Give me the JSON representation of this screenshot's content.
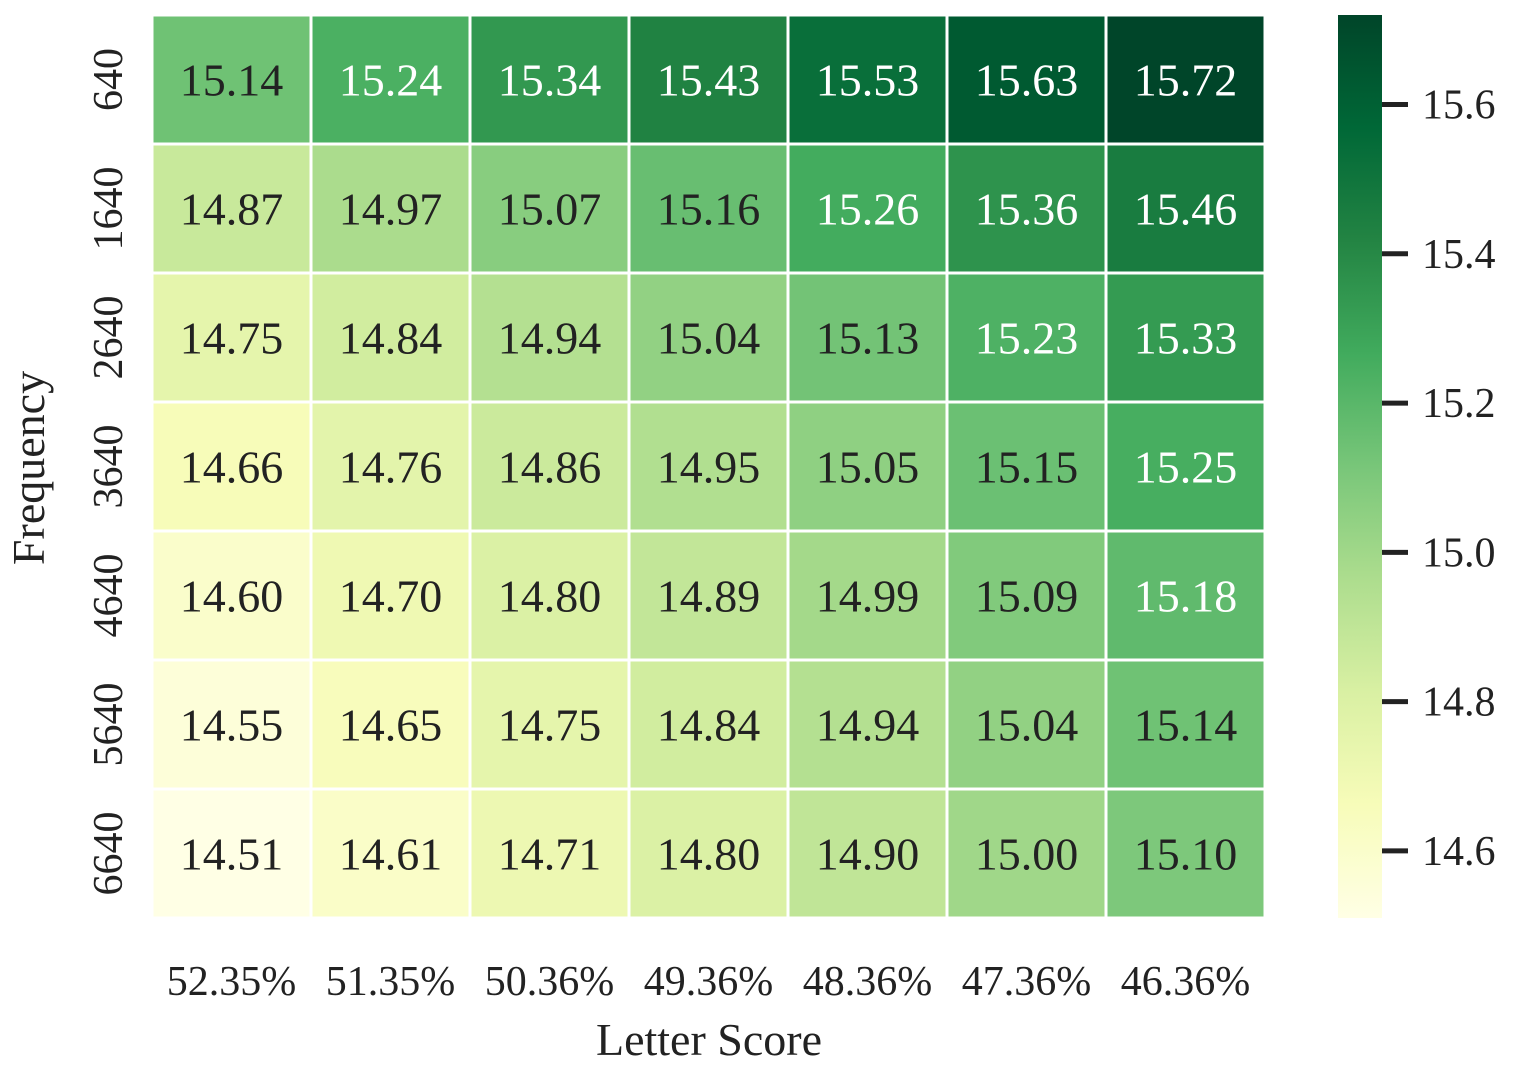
{
  "chart_data": {
    "type": "heatmap",
    "title": "",
    "xlabel": "Letter Score",
    "ylabel": "Frequency",
    "x_categories": [
      "52.35%",
      "51.35%",
      "50.36%",
      "49.36%",
      "48.36%",
      "47.36%",
      "46.36%"
    ],
    "y_categories": [
      "640",
      "1640",
      "2640",
      "3640",
      "4640",
      "5640",
      "6640"
    ],
    "values": [
      [
        "15.14",
        "15.24",
        "15.34",
        "15.43",
        "15.53",
        "15.63",
        "15.72"
      ],
      [
        "14.87",
        "14.97",
        "15.07",
        "15.16",
        "15.26",
        "15.36",
        "15.46"
      ],
      [
        "14.75",
        "14.84",
        "14.94",
        "15.04",
        "15.13",
        "15.23",
        "15.33"
      ],
      [
        "14.66",
        "14.76",
        "14.86",
        "14.95",
        "15.05",
        "15.15",
        "15.25"
      ],
      [
        "14.60",
        "14.70",
        "14.80",
        "14.89",
        "14.99",
        "15.09",
        "15.18"
      ],
      [
        "14.55",
        "14.65",
        "14.75",
        "14.84",
        "14.94",
        "15.04",
        "15.14"
      ],
      [
        "14.51",
        "14.61",
        "14.71",
        "14.80",
        "14.90",
        "15.00",
        "15.10"
      ]
    ],
    "colorbar": {
      "min": 14.51,
      "max": 15.72,
      "ticks": [
        "14.6",
        "14.8",
        "15.0",
        "15.2",
        "15.4",
        "15.6"
      ],
      "colormap": "YlGn"
    },
    "colors": {
      "low": "#ffffe5",
      "high": "#004529",
      "cell_border": "#ffffff",
      "dark_text": "#222222",
      "light_text": "#ffffff"
    }
  }
}
